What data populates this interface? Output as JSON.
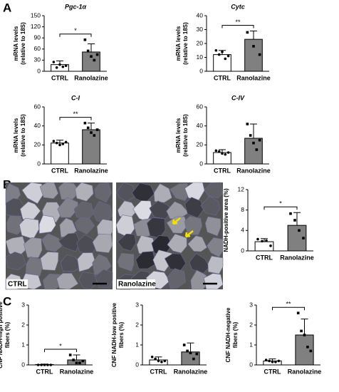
{
  "panels": [
    "A",
    "B",
    "C"
  ],
  "images": [
    {
      "label": "CTRL"
    },
    {
      "label": "Ranolazine"
    }
  ],
  "chart_data": [
    {
      "type": "bar",
      "title": "Pgc-1α",
      "ylabel": [
        "mRNA levels",
        "(relative to 18S)"
      ],
      "categories": [
        "CTRL",
        "Ranolazine"
      ],
      "values": [
        18,
        52
      ],
      "errors": [
        10,
        22
      ],
      "colors": [
        "#ffffff",
        "#808080"
      ],
      "points": [
        [
          25,
          10,
          18,
          12,
          15
        ],
        [
          85,
          55,
          40,
          30,
          45
        ]
      ],
      "significance": "*",
      "ylim": [
        0,
        150
      ],
      "yticks": [
        0,
        30,
        60,
        90,
        120,
        150
      ]
    },
    {
      "type": "bar",
      "title": "Cytc",
      "ylabel": [
        "mRNA levels",
        "(relative to 18S)"
      ],
      "categories": [
        "CTRL",
        "Ranolazine"
      ],
      "values": [
        12,
        23
      ],
      "errors": [
        3,
        6
      ],
      "colors": [
        "#ffffff",
        "#808080"
      ],
      "points": [
        [
          15,
          12,
          14,
          9,
          11
        ],
        [
          28,
          18,
          12
        ]
      ],
      "significance": "**",
      "ylim": [
        0,
        40
      ],
      "yticks": [
        0,
        10,
        20,
        30,
        40
      ]
    },
    {
      "type": "bar",
      "title": "C-I",
      "ylabel": [
        "mRNA levels",
        "(relative to 18S)"
      ],
      "categories": [
        "CTRL",
        "Ranolazine"
      ],
      "values": [
        22,
        36
      ],
      "errors": [
        3,
        7
      ],
      "colors": [
        "#ffffff",
        "#808080"
      ],
      "points": [
        [
          24,
          22,
          20,
          21,
          23
        ],
        [
          43,
          38,
          33,
          30,
          36
        ]
      ],
      "significance": "**",
      "ylim": [
        0,
        60
      ],
      "yticks": [
        0,
        20,
        40,
        60
      ]
    },
    {
      "type": "bar",
      "title": "C-IV",
      "ylabel": [
        "mRNA levels",
        "(relative to 18S)"
      ],
      "categories": [
        "CTRL",
        "Ranolazine"
      ],
      "values": [
        12,
        27
      ],
      "errors": [
        3,
        15
      ],
      "colors": [
        "#ffffff",
        "#808080"
      ],
      "points": [
        [
          14,
          13,
          11,
          10,
          12
        ],
        [
          42,
          30,
          22,
          15,
          25
        ]
      ],
      "ylim": [
        0,
        60
      ],
      "yticks": [
        0,
        20,
        40,
        60
      ]
    },
    {
      "type": "bar",
      "ylabel": [
        "NADH-positive area (%)"
      ],
      "categories": [
        "CTRL",
        "Ranolazine"
      ],
      "values": [
        1.8,
        5
      ],
      "errors": [
        0.6,
        2.5
      ],
      "colors": [
        "#ffffff",
        "#808080"
      ],
      "points": [
        [
          2.3,
          1.9,
          2.0,
          1.0
        ],
        [
          7.3,
          6.0,
          4.0,
          2.5
        ]
      ],
      "significance": "*",
      "ylim": [
        0,
        12
      ],
      "yticks": [
        0,
        4,
        8,
        12
      ]
    },
    {
      "type": "bar",
      "ylabel": [
        "CNF NADH-high positive",
        "fibers (%)"
      ],
      "categories": [
        "CTRL",
        "Ranolazine"
      ],
      "values": [
        0.02,
        0.25
      ],
      "errors": [
        0.02,
        0.25
      ],
      "colors": [
        "#ffffff",
        "#808080"
      ],
      "points": [
        [
          0,
          0,
          0,
          0,
          0
        ],
        [
          0.5,
          0.25,
          0.1,
          0.1,
          0.2
        ]
      ],
      "significance": "*",
      "ylim": [
        0,
        3
      ],
      "yticks": [
        0,
        1,
        2,
        3
      ]
    },
    {
      "type": "bar",
      "ylabel": [
        "CNF NADH-low positive",
        "fibers (%)"
      ],
      "categories": [
        "CTRL",
        "Ranolazine"
      ],
      "values": [
        0.25,
        0.65
      ],
      "errors": [
        0.15,
        0.45
      ],
      "colors": [
        "#ffffff",
        "#808080"
      ],
      "points": [
        [
          0.4,
          0.3,
          0.2,
          0.15,
          0.2
        ],
        [
          1.0,
          0.7,
          0.6,
          0.3,
          0.55
        ]
      ],
      "ylim": [
        0,
        3
      ],
      "yticks": [
        0,
        1,
        2,
        3
      ]
    },
    {
      "type": "bar",
      "ylabel": [
        "CNF NADH-negative",
        "fibers (%)"
      ],
      "categories": [
        "CTRL",
        "Ranolazine"
      ],
      "values": [
        0.2,
        1.5
      ],
      "errors": [
        0.1,
        0.8
      ],
      "colors": [
        "#ffffff",
        "#808080"
      ],
      "points": [
        [
          0.25,
          0.2,
          0.15,
          0.15,
          0.2
        ],
        [
          2.6,
          1.7,
          1.5,
          0.9,
          0.7
        ]
      ],
      "significance": "**",
      "ylim": [
        0,
        3
      ],
      "yticks": [
        0,
        1,
        2,
        3
      ]
    }
  ]
}
